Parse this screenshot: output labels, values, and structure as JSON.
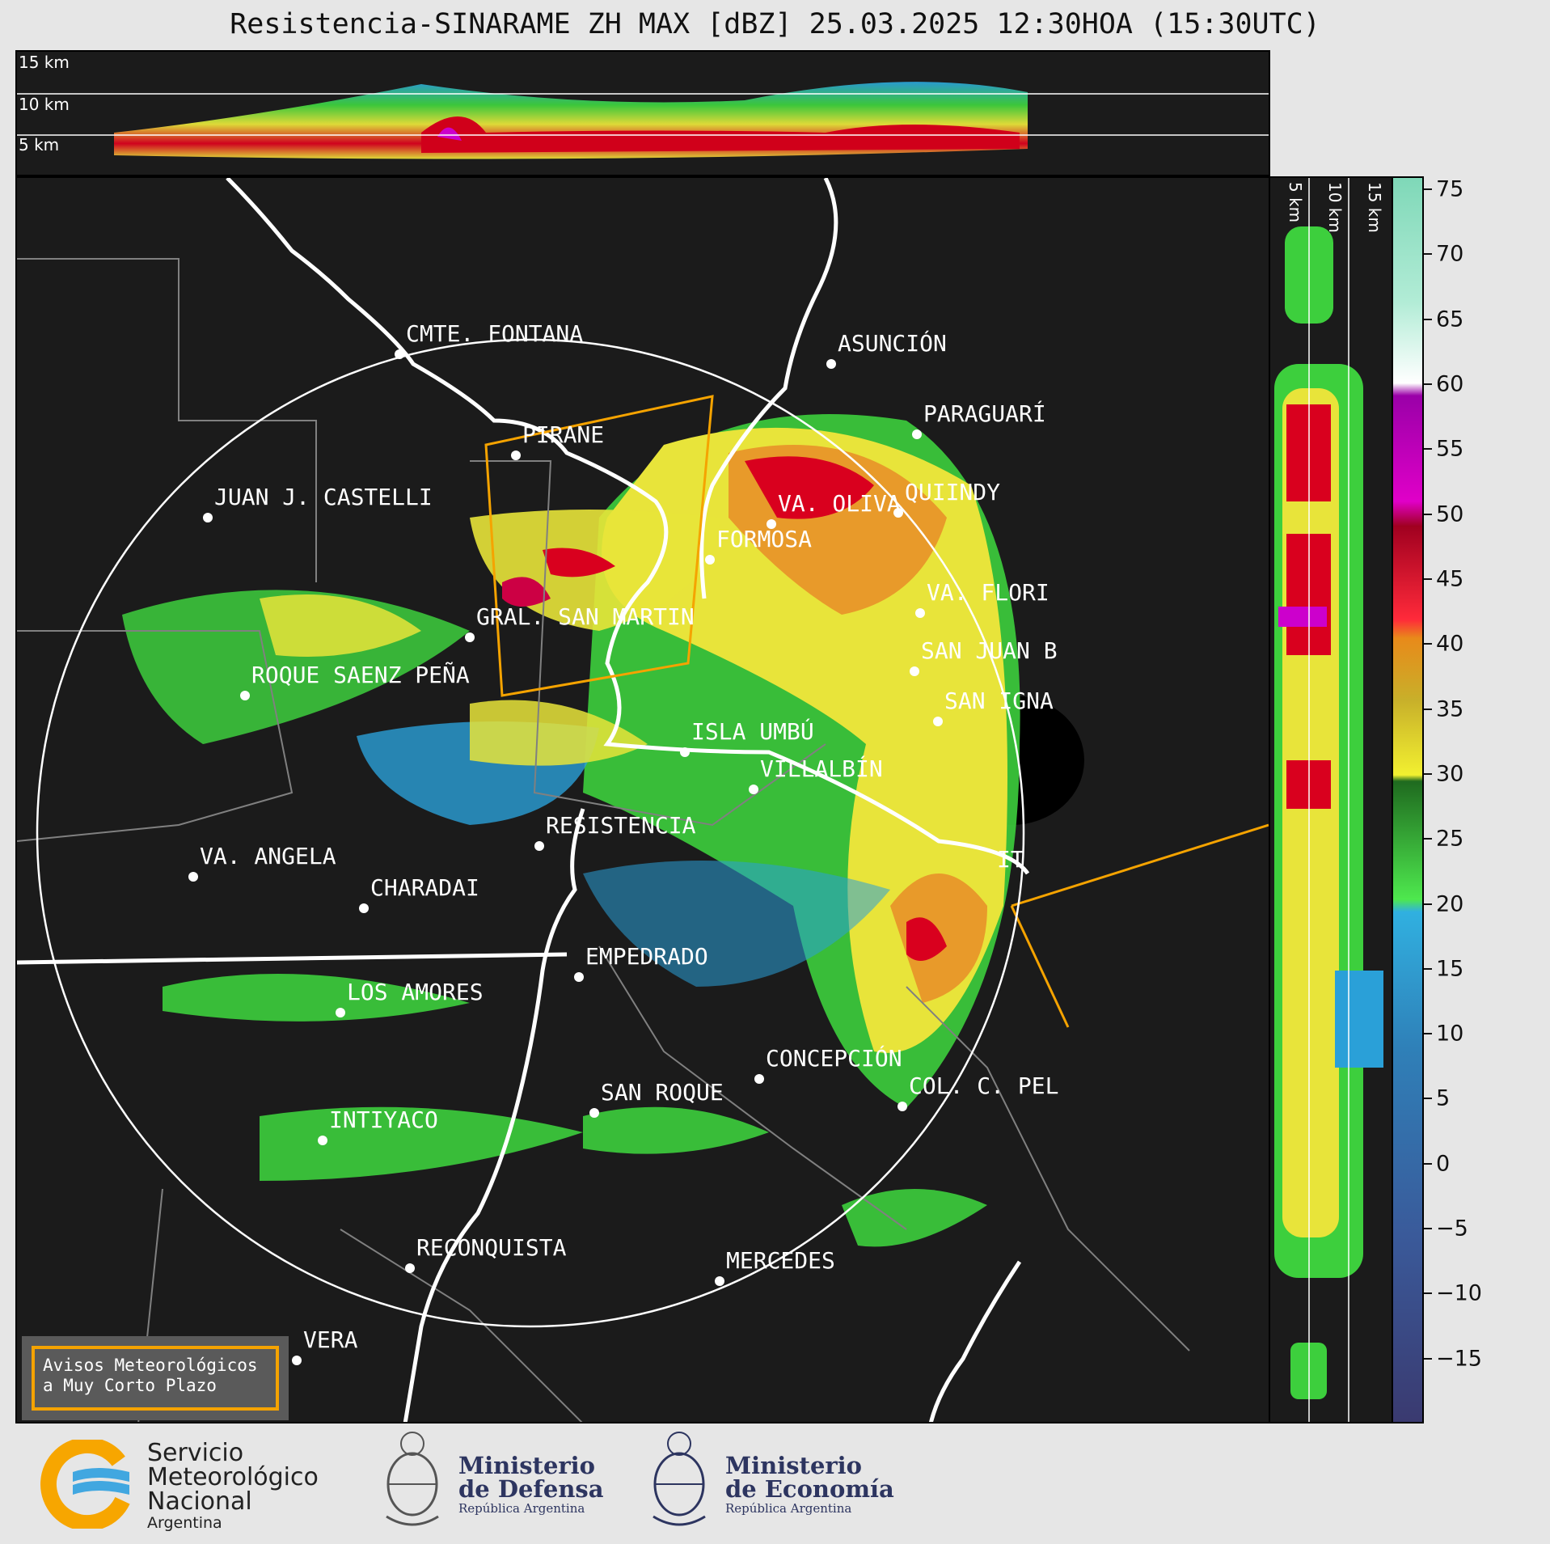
{
  "title": "Resistencia-SINARAME ZH MAX [dBZ] 25.03.2025 12:30HOA (15:30UTC)",
  "top_panel": {
    "alt_labels": [
      "15 km",
      "10 km",
      "5 km"
    ]
  },
  "side_panel": {
    "alt_labels": [
      "5 km",
      "10 km",
      "15 km"
    ]
  },
  "cities": [
    {
      "name": "CMTE. FONTANA"
    },
    {
      "name": "ASUNCIÓN"
    },
    {
      "name": "PARAGUARÍ"
    },
    {
      "name": "PIRANE"
    },
    {
      "name": "JUAN J. CASTELLI"
    },
    {
      "name": "VA. OLIVA"
    },
    {
      "name": "QUIINDY"
    },
    {
      "name": "FORMOSA"
    },
    {
      "name": "VA. FLORI"
    },
    {
      "name": "GRAL. SAN MARTIN"
    },
    {
      "name": "SAN JUAN B"
    },
    {
      "name": "ROQUE SAENZ PEÑA"
    },
    {
      "name": "SAN IGNA"
    },
    {
      "name": "ISLA UMBÚ"
    },
    {
      "name": "VILLALBÍN"
    },
    {
      "name": "RESISTENCIA"
    },
    {
      "name": "VA. ANGELA"
    },
    {
      "name": "CHARADAI"
    },
    {
      "name": "IT"
    },
    {
      "name": "EMPEDRADO"
    },
    {
      "name": "LOS AMORES"
    },
    {
      "name": "CONCEPCIÓN"
    },
    {
      "name": "SAN ROQUE"
    },
    {
      "name": "COL. C. PEL"
    },
    {
      "name": "INTIYACO"
    },
    {
      "name": "RECONQUISTA"
    },
    {
      "name": "MERCEDES"
    },
    {
      "name": "VERA"
    }
  ],
  "colorbar": {
    "unit": "dBZ",
    "range": [
      -20,
      76
    ],
    "ticks": [
      "75",
      "70",
      "65",
      "60",
      "55",
      "50",
      "45",
      "40",
      "35",
      "30",
      "25",
      "20",
      "15",
      "10",
      "5",
      "0",
      "−5",
      "−10",
      "−15"
    ],
    "tick_values": [
      75,
      70,
      65,
      60,
      55,
      50,
      45,
      40,
      35,
      30,
      25,
      20,
      15,
      10,
      5,
      0,
      -5,
      -10,
      -15
    ]
  },
  "warning_box": {
    "line1": "Avisos Meteorológicos",
    "line2": "a Muy Corto Plazo"
  },
  "logos": {
    "smn": {
      "line1": "Servicio",
      "line2": "Meteorológico",
      "line3": "Nacional",
      "line4": "Argentina"
    },
    "defensa": {
      "line1": "Ministerio",
      "line2": "de Defensa",
      "line3": "República Argentina"
    },
    "economia": {
      "line1": "Ministerio",
      "line2": "de Economía",
      "line3": "República Argentina"
    }
  },
  "colors": {
    "background": "#1b1b1b",
    "land_border": "#808080",
    "river": "#ffffff",
    "warning_polygon": "#f5a300",
    "range_ring": "#ffffff"
  }
}
